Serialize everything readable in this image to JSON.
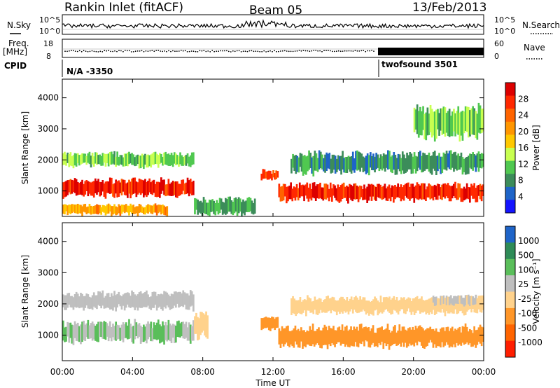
{
  "header": {
    "station": "Rankin Inlet (fitACF)",
    "beam": "Beam 05",
    "date": "13/Feb/2013"
  },
  "side_labels": {
    "nsky": "N.Sky",
    "nsearch": "N.Search",
    "freq_line1": "Freq.",
    "freq_line2": "[MHz]",
    "nave": "Nave",
    "cpid": "CPID",
    "noise_top": "10^5",
    "noise_bottom": "10^0",
    "freq_top": "18",
    "freq_bottom": "8",
    "nave_top": "60",
    "nave_bottom": "0"
  },
  "cpid": {
    "first": "N/A -3350",
    "second": "twofsound 3501",
    "switch_time": "18:00"
  },
  "chart_data": [
    {
      "type": "heatmap",
      "name": "power-panel",
      "xlabel": "Time UT",
      "ylabel": "Slant Range [km]",
      "xticks": [
        "00:00",
        "04:00",
        "08:00",
        "12:00",
        "16:00",
        "20:00",
        "00:00"
      ],
      "xlim_hours": [
        0,
        24
      ],
      "yticks": [
        "1000",
        "2000",
        "3000",
        "4000"
      ],
      "ylim_km": [
        180,
        4600
      ],
      "colorbar": {
        "label": "Power [dB]",
        "ticks": [
          "28",
          "24",
          "20",
          "16",
          "12",
          "8",
          "4"
        ],
        "range": [
          0,
          32
        ],
        "colors": [
          "#1414ff",
          "#1e64c8",
          "#3c8c5a",
          "#50c850",
          "#c8ff50",
          "#ffc800",
          "#ff9600",
          "#ff6400",
          "#ff2800",
          "#dc0000"
        ]
      },
      "bands": [
        {
          "t0": 0.0,
          "t1": 7.5,
          "center_km": 1100,
          "width_km": 500,
          "level": 28
        },
        {
          "t0": 0.0,
          "t1": 7.5,
          "center_km": 2000,
          "width_km": 400,
          "level": 12
        },
        {
          "t0": 0.0,
          "t1": 6.0,
          "center_km": 400,
          "width_km": 300,
          "level": 20
        },
        {
          "t0": 7.5,
          "t1": 11.0,
          "center_km": 500,
          "width_km": 500,
          "level": 10
        },
        {
          "t0": 11.3,
          "t1": 12.3,
          "center_km": 1500,
          "width_km": 300,
          "level": 26
        },
        {
          "t0": 12.3,
          "t1": 24.0,
          "center_km": 950,
          "width_km": 500,
          "level": 28
        },
        {
          "t0": 13.0,
          "t1": 24.0,
          "center_km": 1900,
          "width_km": 600,
          "level": 8
        },
        {
          "t0": 20.0,
          "t1": 24.0,
          "center_km": 3200,
          "width_km": 900,
          "level": 12
        }
      ]
    },
    {
      "type": "heatmap",
      "name": "velocity-panel",
      "xlabel": "Time UT",
      "ylabel": "Slant Range [km]",
      "xticks": [
        "00:00",
        "04:00",
        "08:00",
        "12:00",
        "16:00",
        "20:00",
        "00:00"
      ],
      "xlim_hours": [
        0,
        24
      ],
      "yticks": [
        "1000",
        "2000",
        "3000",
        "4000"
      ],
      "ylim_km": [
        180,
        4600
      ],
      "colorbar": {
        "label": "Velocity [m s⁻¹]",
        "ticks": [
          "1000",
          "500",
          "100",
          "25",
          "-25",
          "-100",
          "-500",
          "-1000"
        ],
        "range": [
          -1200,
          1200
        ],
        "colors": [
          "#1e64c8",
          "#2e8b57",
          "#5abe5a",
          "#bfbfbf",
          "#ffd28c",
          "#ff9628",
          "#ff6400",
          "#ff1e00"
        ]
      },
      "bands": [
        {
          "t0": 0.0,
          "t1": 7.5,
          "center_km": 1100,
          "width_km": 600,
          "level": 300
        },
        {
          "t0": 0.0,
          "t1": 7.5,
          "center_km": 2100,
          "width_km": 500,
          "level": 60
        },
        {
          "t0": 7.5,
          "t1": 8.3,
          "center_km": 1300,
          "width_km": 800,
          "level": -200
        },
        {
          "t0": 11.3,
          "t1": 12.3,
          "center_km": 1400,
          "width_km": 400,
          "level": -400
        },
        {
          "t0": 12.3,
          "t1": 24.0,
          "center_km": 950,
          "width_km": 600,
          "level": -400
        },
        {
          "t0": 13.0,
          "t1": 24.0,
          "center_km": 1950,
          "width_km": 500,
          "level": -200
        },
        {
          "t0": 21.0,
          "t1": 24.0,
          "center_km": 2100,
          "width_km": 300,
          "level": 20
        }
      ]
    }
  ]
}
